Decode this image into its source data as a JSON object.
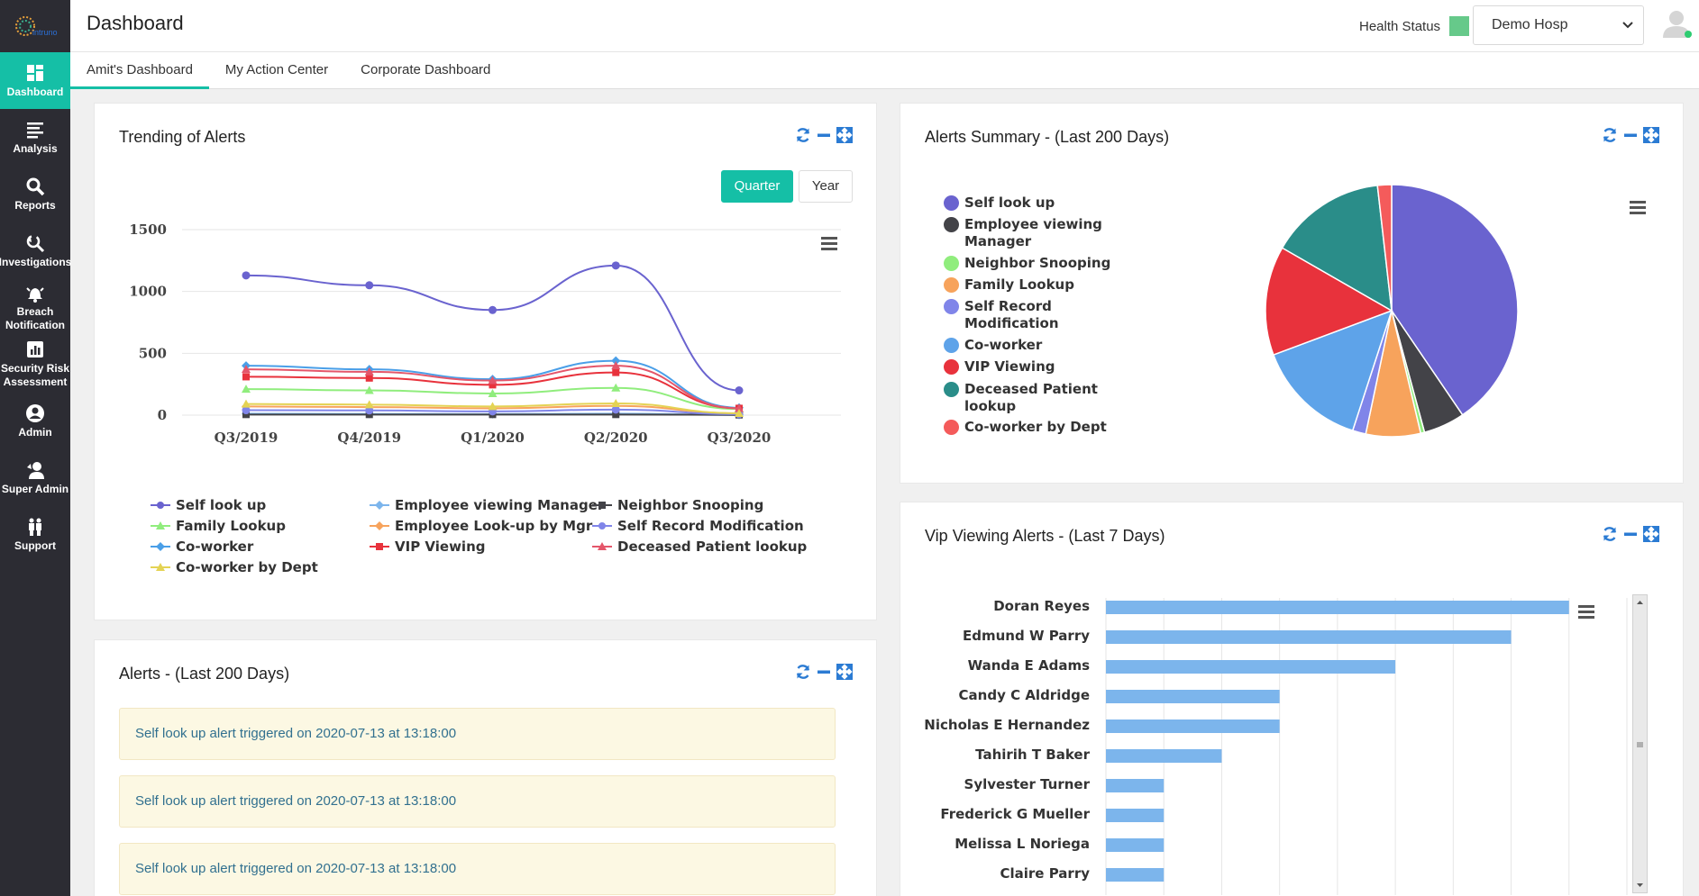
{
  "app": {
    "logo_text": "intruno",
    "page_title": "Dashboard"
  },
  "sidebar": {
    "items": [
      {
        "label": "Dashboard",
        "icon": "grid-icon",
        "active": true
      },
      {
        "label": "Analysis",
        "icon": "list-icon"
      },
      {
        "label": "Reports",
        "icon": "search-icon"
      },
      {
        "label": "Investigations",
        "icon": "magnify-refresh-icon"
      },
      {
        "label": "Breach\nNotification",
        "icon": "bell-icon"
      },
      {
        "label": "Security Risk\nAssessment",
        "icon": "bar-chart-icon"
      },
      {
        "label": "Admin",
        "icon": "user-circle-icon"
      },
      {
        "label": "Super Admin",
        "icon": "super-admin-icon"
      },
      {
        "label": "Support",
        "icon": "people-icon"
      }
    ]
  },
  "header": {
    "health_label": "Health Status",
    "health_color": "#66c98a",
    "hospital": "Demo Hosp"
  },
  "tabs": [
    "Amit's Dashboard",
    "My Action Center",
    "Corporate Dashboard"
  ],
  "panels": {
    "trending": {
      "title": "Trending of Alerts",
      "buttons": {
        "quarter": "Quarter",
        "year": "Year"
      }
    },
    "summary": {
      "title": "Alerts Summary - (Last 200 Days)"
    },
    "alerts": {
      "title": "Alerts - (Last 200 Days)",
      "items": [
        "Self look up alert triggered on 2020-07-13 at 13:18:00",
        "Self look up alert triggered on 2020-07-13 at 13:18:00",
        "Self look up alert triggered on 2020-07-13 at 13:18:00"
      ]
    },
    "vip": {
      "title": "Vip Viewing Alerts - (Last 7 Days)"
    }
  },
  "chart_data": [
    {
      "type": "line",
      "categories": [
        "Q3/2019",
        "Q4/2019",
        "Q1/2020",
        "Q2/2020",
        "Q3/2020"
      ],
      "ylim": [
        0,
        1500
      ],
      "yticks": [
        0,
        500,
        1000,
        1500
      ],
      "legend_placement": "bottom",
      "series": [
        {
          "name": "Self look up",
          "color": "#6a63cf",
          "marker": "circle",
          "values": [
            1130,
            1050,
            850,
            1210,
            200
          ]
        },
        {
          "name": "Employee viewing Manager",
          "color": "#7cb5ec",
          "marker": "diamond",
          "values": [
            12,
            10,
            8,
            12,
            2
          ]
        },
        {
          "name": "Neighbor Snooping",
          "color": "#434348",
          "marker": "square",
          "values": [
            5,
            5,
            5,
            5,
            2
          ]
        },
        {
          "name": "Family Lookup",
          "color": "#90ed7d",
          "marker": "triangle",
          "values": [
            210,
            200,
            175,
            220,
            50
          ]
        },
        {
          "name": "Employee Look-up by Mgr",
          "color": "#f7a35c",
          "marker": "diamond",
          "values": [
            70,
            65,
            55,
            75,
            15
          ]
        },
        {
          "name": "Self Record Modification",
          "color": "#8085e9",
          "marker": "circle",
          "values": [
            40,
            38,
            30,
            45,
            8
          ]
        },
        {
          "name": "Co-worker",
          "color": "#4a9fe8",
          "marker": "diamond",
          "values": [
            400,
            370,
            290,
            440,
            60
          ]
        },
        {
          "name": "VIP Viewing",
          "color": "#e8323c",
          "marker": "square",
          "values": [
            310,
            300,
            245,
            345,
            55
          ]
        },
        {
          "name": "Deceased Patient lookup",
          "color": "#e4566a",
          "marker": "triangle",
          "values": [
            370,
            350,
            280,
            400,
            55
          ]
        },
        {
          "name": "Co-worker by Dept",
          "color": "#e4d354",
          "marker": "triangle",
          "values": [
            90,
            85,
            70,
            95,
            15
          ]
        }
      ]
    },
    {
      "type": "pie",
      "legend_placement": "left",
      "slices": [
        {
          "name": "Self look up",
          "value": 40.5,
          "color": "#6a63cf"
        },
        {
          "name": "Employee viewing Manager",
          "value": 5.3,
          "color": "#434348"
        },
        {
          "name": "Neighbor Snooping",
          "value": 0.5,
          "color": "#90ed7d"
        },
        {
          "name": "Family Lookup",
          "value": 7.0,
          "color": "#f7a35c"
        },
        {
          "name": "Self Record Modification",
          "value": 1.7,
          "color": "#8085e9"
        },
        {
          "name": "Co-worker",
          "value": 14.3,
          "color": "#5ea3e9"
        },
        {
          "name": "VIP Viewing",
          "value": 14.0,
          "color": "#e8323c"
        },
        {
          "name": "Deceased Patient lookup",
          "value": 14.9,
          "color": "#2a8d89"
        },
        {
          "name": "Co-worker by Dept",
          "value": 1.8,
          "color": "#f45b5b"
        }
      ]
    },
    {
      "type": "bar",
      "orientation": "horizontal",
      "color": "#7cb5ec",
      "categories": [
        "Doran Reyes",
        "Edmund W Parry",
        "Wanda E Adams",
        "Candy C Aldridge",
        "Nicholas E Hernandez",
        "Tahirih T Baker",
        "Sylvester Turner",
        "Frederick G Mueller",
        "Melissa L Noriega",
        "Claire Parry"
      ],
      "values": [
        8,
        7,
        5,
        3,
        3,
        2,
        1,
        1,
        1,
        1
      ],
      "xlim": [
        0,
        9
      ],
      "grid": true
    }
  ]
}
